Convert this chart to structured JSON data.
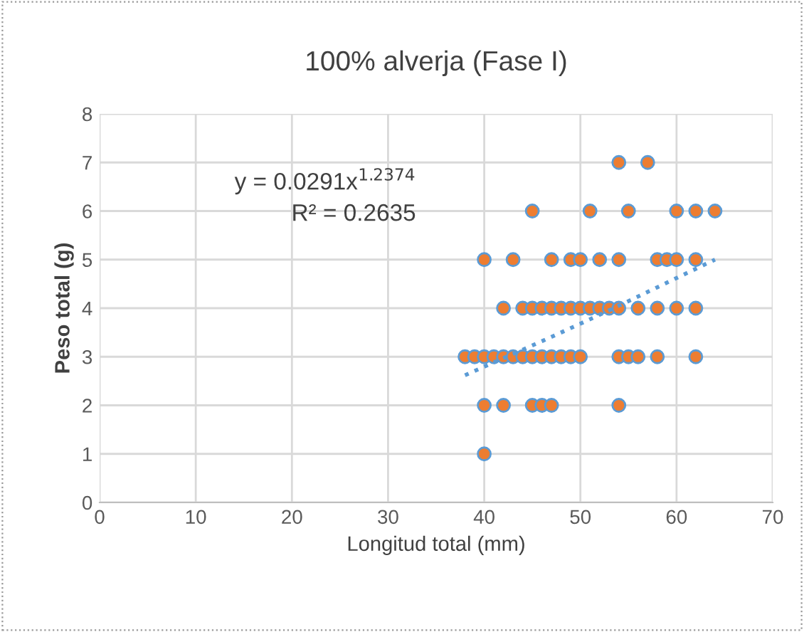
{
  "chart_data": {
    "type": "scatter",
    "title": "100% alverja (Fase I)",
    "xlabel": "Longitud total (mm)",
    "ylabel": "Peso total (g)",
    "xlim": [
      0,
      70
    ],
    "xticks": [
      0,
      10,
      20,
      30,
      40,
      50,
      60,
      70
    ],
    "ylim": [
      0,
      8
    ],
    "yticks": [
      0,
      1,
      2,
      3,
      4,
      5,
      6,
      7,
      8
    ],
    "grid": true,
    "legend": false,
    "annotations": [
      "y = 0.0291x$^{1.2374}$",
      "R² = 0.2635"
    ],
    "series": [
      {
        "color": "#ed7d31",
        "marker": "circle",
        "x": [
          54,
          57,
          45,
          51,
          55,
          60,
          62,
          64,
          40,
          43,
          47,
          49,
          50,
          52,
          54,
          58,
          59,
          60,
          62,
          42,
          44,
          45,
          46,
          47,
          48,
          49,
          50,
          51,
          52,
          53,
          54,
          56,
          58,
          60,
          62,
          38,
          39,
          40,
          41,
          42,
          43,
          44,
          45,
          46,
          47,
          48,
          49,
          50,
          54,
          55,
          56,
          58,
          62,
          40,
          42,
          45,
          46,
          47,
          54,
          40
        ],
        "values": [
          7,
          7,
          6,
          6,
          6,
          6,
          6,
          6,
          5,
          5,
          5,
          5,
          5,
          5,
          5,
          5,
          5,
          5,
          5,
          4,
          4,
          4,
          4,
          4,
          4,
          4,
          4,
          4,
          4,
          4,
          4,
          4,
          4,
          4,
          4,
          3,
          3,
          3,
          3,
          3,
          3,
          3,
          3,
          3,
          3,
          3,
          3,
          3,
          3,
          3,
          3,
          3,
          3,
          2,
          2,
          2,
          2,
          2,
          2,
          1
        ]
      },
      {
        "type": "line",
        "color": "#5b9bd5",
        "line_style": "dotted",
        "marker": "none",
        "x": [
          38,
          42,
          46,
          50,
          54,
          58,
          64
        ],
        "values": [
          2.62,
          2.97,
          3.32,
          3.68,
          4.05,
          4.43,
          5.0
        ]
      }
    ]
  }
}
